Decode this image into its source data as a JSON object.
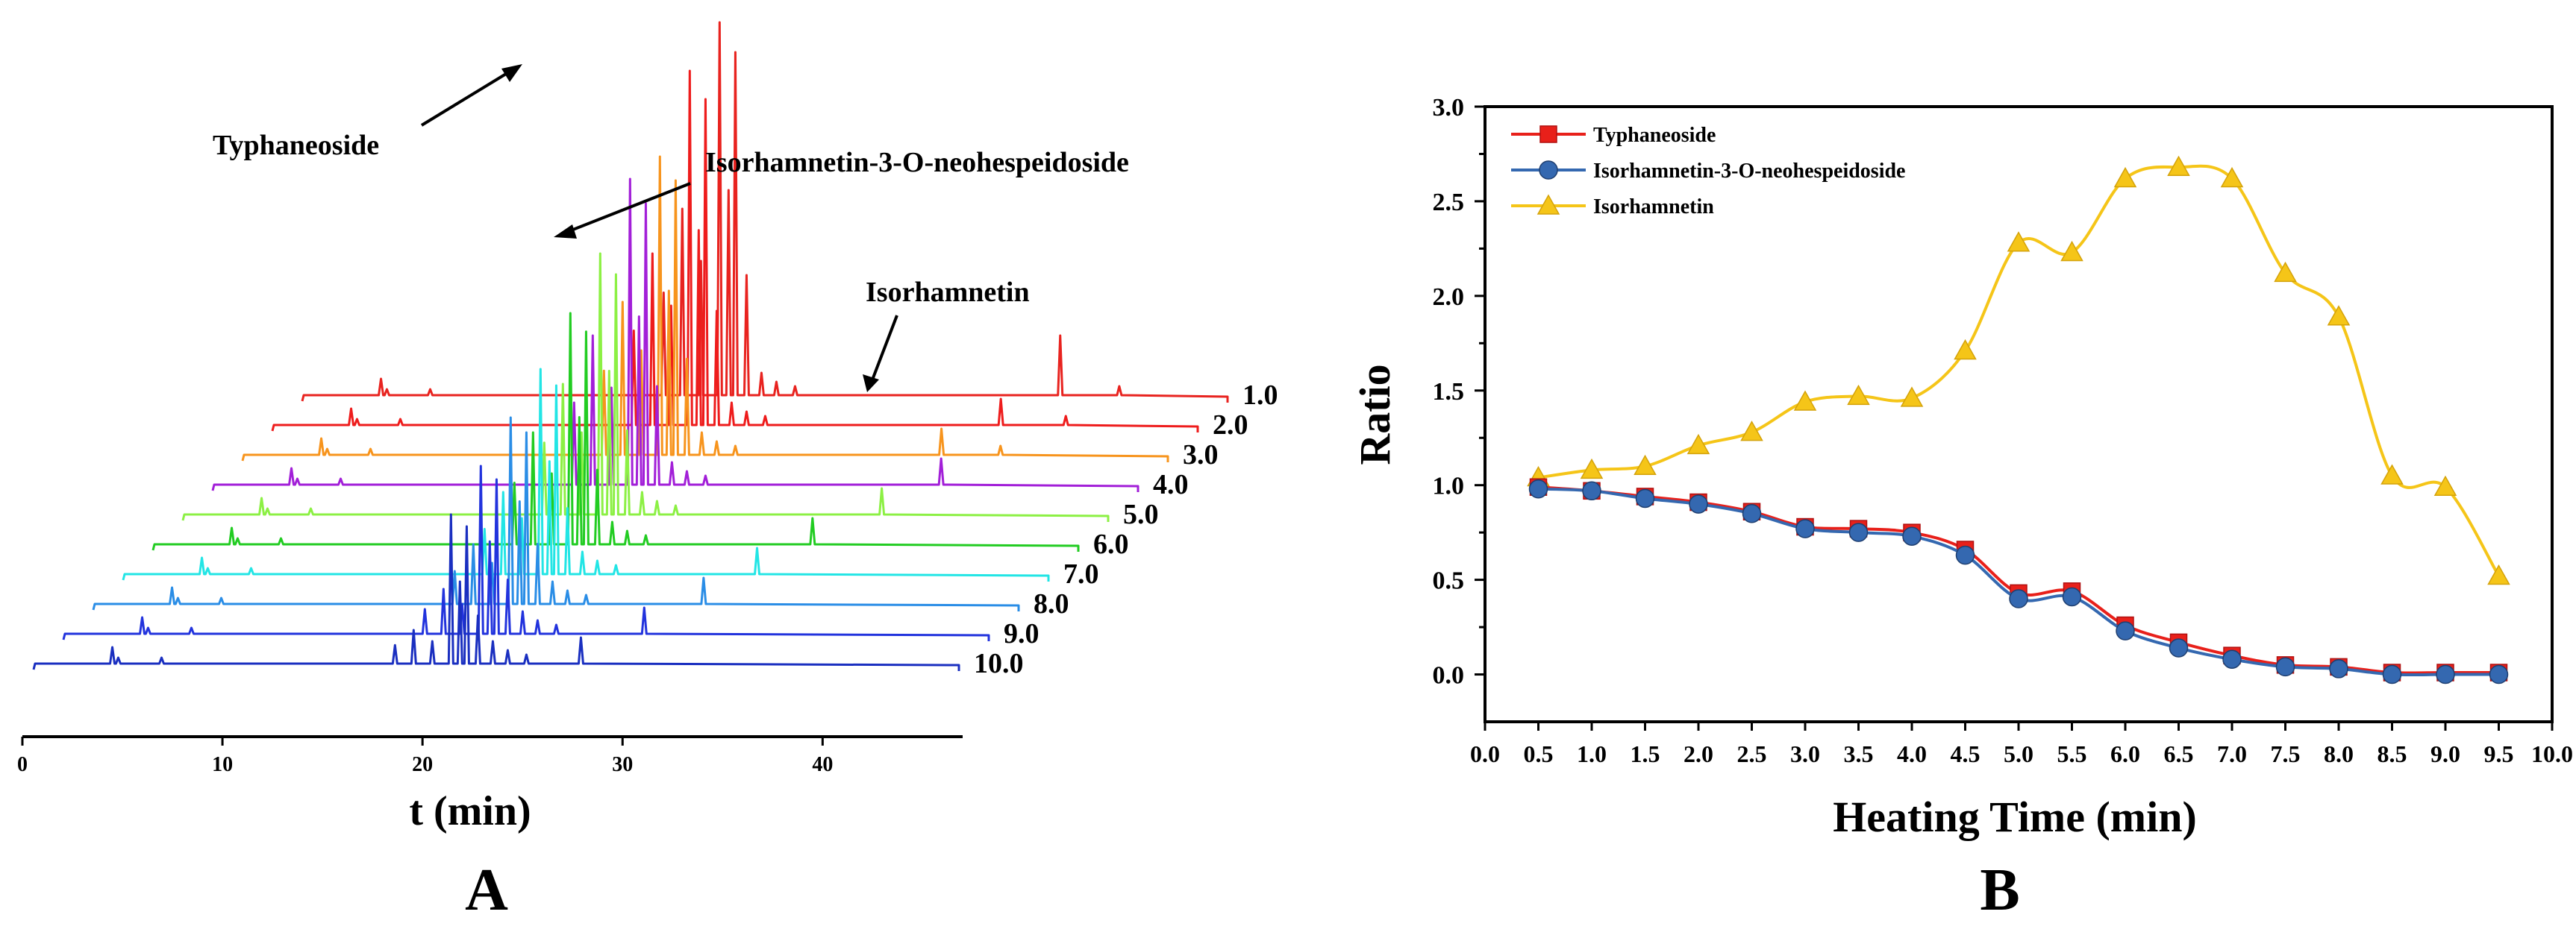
{
  "panelA": {
    "label": "A",
    "xlabel": "t (min)",
    "x_ticks": [
      0,
      10,
      20,
      30,
      40
    ],
    "x_range": [
      0,
      47
    ],
    "annotations": {
      "typhaneoside": "Typhaneoside",
      "isorhamnetin_neo": "Isorhamnetin-3-O-neohespeidoside",
      "isorhamnetin": "Isorhamnetin"
    },
    "traces": [
      {
        "label": "1.0",
        "color": "#e8231f"
      },
      {
        "label": "2.0",
        "color": "#ee1c1c"
      },
      {
        "label": "3.0",
        "color": "#f7941d"
      },
      {
        "label": "4.0",
        "color": "#a21fd8"
      },
      {
        "label": "5.0",
        "color": "#8cf044"
      },
      {
        "label": "6.0",
        "color": "#22cc22"
      },
      {
        "label": "7.0",
        "color": "#22e5e5"
      },
      {
        "label": "8.0",
        "color": "#2a8de6"
      },
      {
        "label": "9.0",
        "color": "#2233dd"
      },
      {
        "label": "10.0",
        "color": "#1a2fc0"
      }
    ]
  },
  "chart_data": [
    {
      "type": "line",
      "panel": "A",
      "title": "",
      "xlabel": "t (min)",
      "ylabel": "",
      "xlim": [
        0,
        47
      ],
      "series": [
        {
          "name": "1.0",
          "main_peaks_min": [
            21.2,
            22.0,
            38.5,
            41.5
          ]
        },
        {
          "name": "2.0",
          "main_peaks_min": [
            21.2,
            22.0,
            37.0,
            40.3
          ]
        },
        {
          "name": "3.0",
          "main_peaks_min": [
            21.2,
            22.0,
            35.5,
            38.5
          ]
        },
        {
          "name": "4.0",
          "main_peaks_min": [
            21.2,
            22.0,
            37.0
          ]
        },
        {
          "name": "5.0",
          "main_peaks_min": [
            21.2,
            22.0,
            35.5
          ]
        },
        {
          "name": "6.0",
          "main_peaks_min": [
            21.2,
            22.0,
            33.5
          ]
        },
        {
          "name": "7.0",
          "main_peaks_min": [
            21.2,
            22.0,
            32.2
          ]
        },
        {
          "name": "8.0",
          "main_peaks_min": [
            21.2,
            22.0,
            31.0
          ]
        },
        {
          "name": "9.0",
          "main_peaks_min": [
            21.2,
            22.0,
            29.5
          ]
        },
        {
          "name": "10.0",
          "main_peaks_min": [
            21.2,
            22.0,
            27.8
          ]
        }
      ]
    },
    {
      "type": "line",
      "panel": "B",
      "title": "",
      "xlabel": "Heating Time (min)",
      "ylabel": "Ratio",
      "xlim": [
        0.0,
        10.0
      ],
      "ylim": [
        -0.25,
        3.0
      ],
      "x_tick_labels": [
        "0.0",
        "0.5",
        "1.0",
        "1.5",
        "2.0",
        "2.5",
        "3.0",
        "3.5",
        "4.0",
        "4.5",
        "5.0",
        "5.5",
        "6.0",
        "6.5",
        "7.0",
        "7.5",
        "8.0",
        "8.5",
        "9.0",
        "9.5",
        "10.0"
      ],
      "y_tick_labels": [
        "0.0",
        "0.5",
        "1.0",
        "1.5",
        "2.0",
        "2.5",
        "3.0"
      ],
      "legend_position": "top-left",
      "x": [
        0.5,
        1.0,
        1.5,
        2.0,
        2.5,
        3.0,
        3.5,
        4.0,
        4.5,
        5.0,
        5.5,
        6.0,
        6.5,
        7.0,
        7.5,
        8.0,
        8.5,
        9.0,
        9.5
      ],
      "series": [
        {
          "name": "Typhaneoside",
          "color": "#e8201a",
          "marker": "square",
          "values": [
            0.99,
            0.97,
            0.94,
            0.91,
            0.86,
            0.78,
            0.77,
            0.75,
            0.66,
            0.43,
            0.44,
            0.26,
            0.17,
            0.1,
            0.05,
            0.04,
            0.01,
            0.01,
            0.01
          ]
        },
        {
          "name": "Isorhamnetin-3-O-neohespeidoside",
          "color": "#3468b0",
          "marker": "circle",
          "values": [
            0.98,
            0.97,
            0.93,
            0.9,
            0.85,
            0.77,
            0.75,
            0.73,
            0.63,
            0.4,
            0.41,
            0.23,
            0.14,
            0.08,
            0.04,
            0.03,
            0.0,
            0.0,
            0.0
          ]
        },
        {
          "name": "Isorhamnetin",
          "color": "#f5c518",
          "marker": "triangle",
          "values": [
            1.04,
            1.08,
            1.1,
            1.21,
            1.28,
            1.44,
            1.47,
            1.46,
            1.71,
            2.28,
            2.23,
            2.62,
            2.68,
            2.62,
            2.12,
            1.89,
            1.05,
            0.99,
            0.52
          ]
        }
      ]
    }
  ],
  "panelB": {
    "label": "B"
  }
}
